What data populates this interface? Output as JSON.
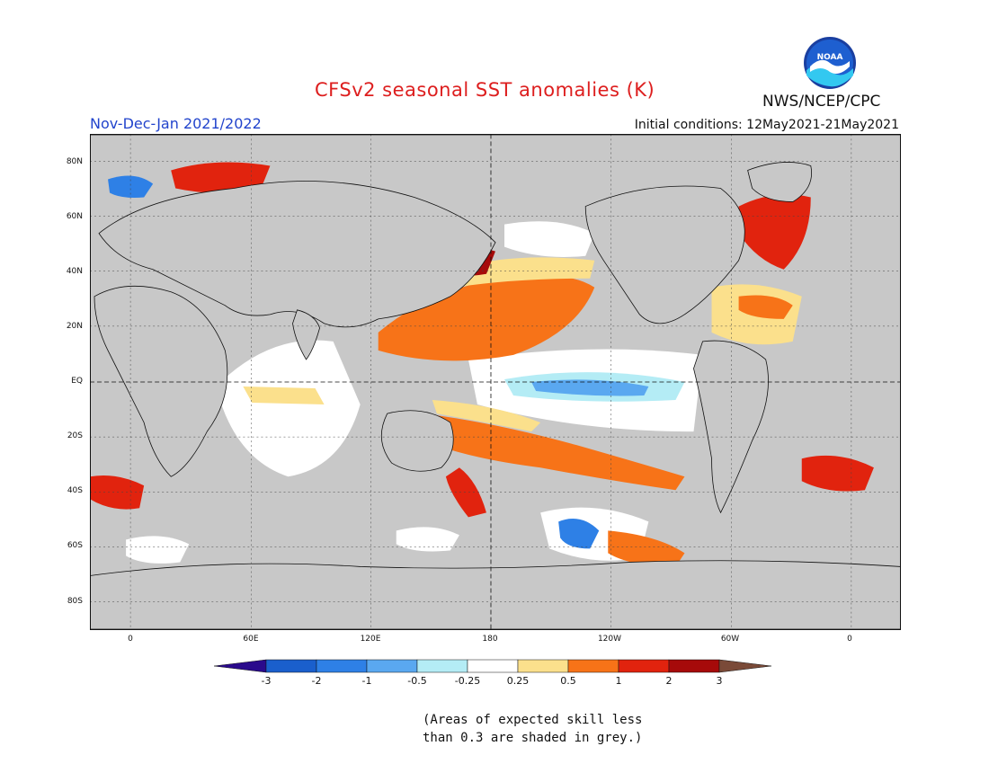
{
  "header": {
    "title": "CFSv2 seasonal SST anomalies (K)",
    "period": "Nov-Dec-Jan 2021/2022",
    "initial_conditions": "Initial conditions: 12May2021-21May2021",
    "agency": "NWS/NCEP/CPC",
    "logo_text": "NOAA"
  },
  "map": {
    "projection": "equirectangular",
    "lat_labels": [
      "80N",
      "60N",
      "40N",
      "20N",
      "EQ",
      "20S",
      "40S",
      "60S",
      "80S"
    ],
    "lon_labels": [
      "0",
      "60E",
      "120E",
      "180",
      "120W",
      "60W",
      "0"
    ],
    "land_color": "#c8c8c8",
    "low_skill_color": "#c8c8c8"
  },
  "legend": {
    "tick_labels": [
      "-3",
      "-2",
      "-1",
      "-0.5",
      "-0.25",
      "0.25",
      "0.5",
      "1",
      "2",
      "3"
    ],
    "colors": [
      "#2a0a8c",
      "#1a5fcc",
      "#2e80e6",
      "#5aa8f0",
      "#b4ecf5",
      "#ffffff",
      "#fbe08c",
      "#f77318",
      "#e1230e",
      "#a60a0a",
      "#7a4a38"
    ],
    "note_line1": "(Areas of expected skill less",
    "note_line2": "than 0.3 are shaded in grey.)"
  }
}
